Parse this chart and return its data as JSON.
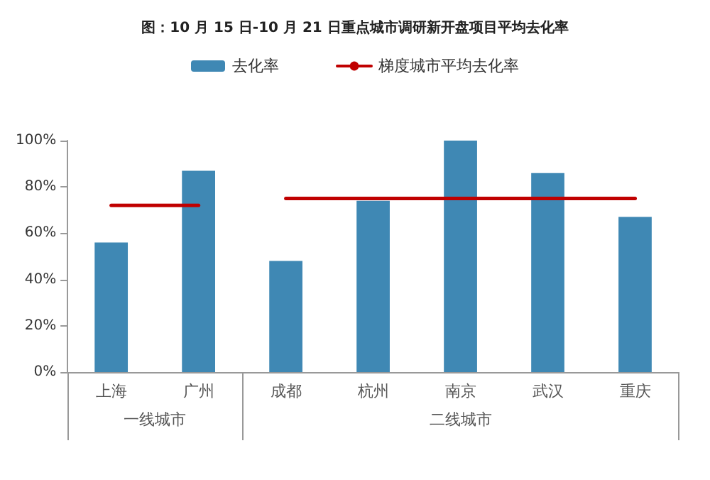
{
  "chart_data": {
    "type": "bar",
    "title": "图：10 月 15 日-10 月 21 日重点城市调研新开盘项目平均去化率",
    "categories": [
      "上海",
      "广州",
      "成都",
      "杭州",
      "南京",
      "武汉",
      "重庆"
    ],
    "series": [
      {
        "name": "去化率",
        "color": "#3f88b4",
        "values": [
          56,
          87,
          48,
          74,
          100,
          86,
          67
        ]
      },
      {
        "name": "梯度城市平均去化率",
        "type": "line",
        "color": "#c00000",
        "values": [
          72,
          72,
          null,
          null,
          null,
          null,
          null
        ]
      },
      {
        "type": "line",
        "color": "#c00000",
        "values": [
          null,
          null,
          75,
          75,
          75,
          75,
          75
        ]
      }
    ],
    "annotations": [
      "一线城市",
      "二线城市"
    ],
    "ylim": [
      0,
      100
    ],
    "yticks": [
      {
        "value": 0,
        "label": "0%"
      },
      {
        "value": 20,
        "label": "20%"
      },
      {
        "value": 40,
        "label": "40%"
      },
      {
        "value": 60,
        "label": "60%"
      },
      {
        "value": 80,
        "label": "80%"
      },
      {
        "value": 100,
        "label": "100%"
      }
    ],
    "grid": false,
    "legend": "top",
    "marker": "none",
    "line_style": "solid"
  }
}
